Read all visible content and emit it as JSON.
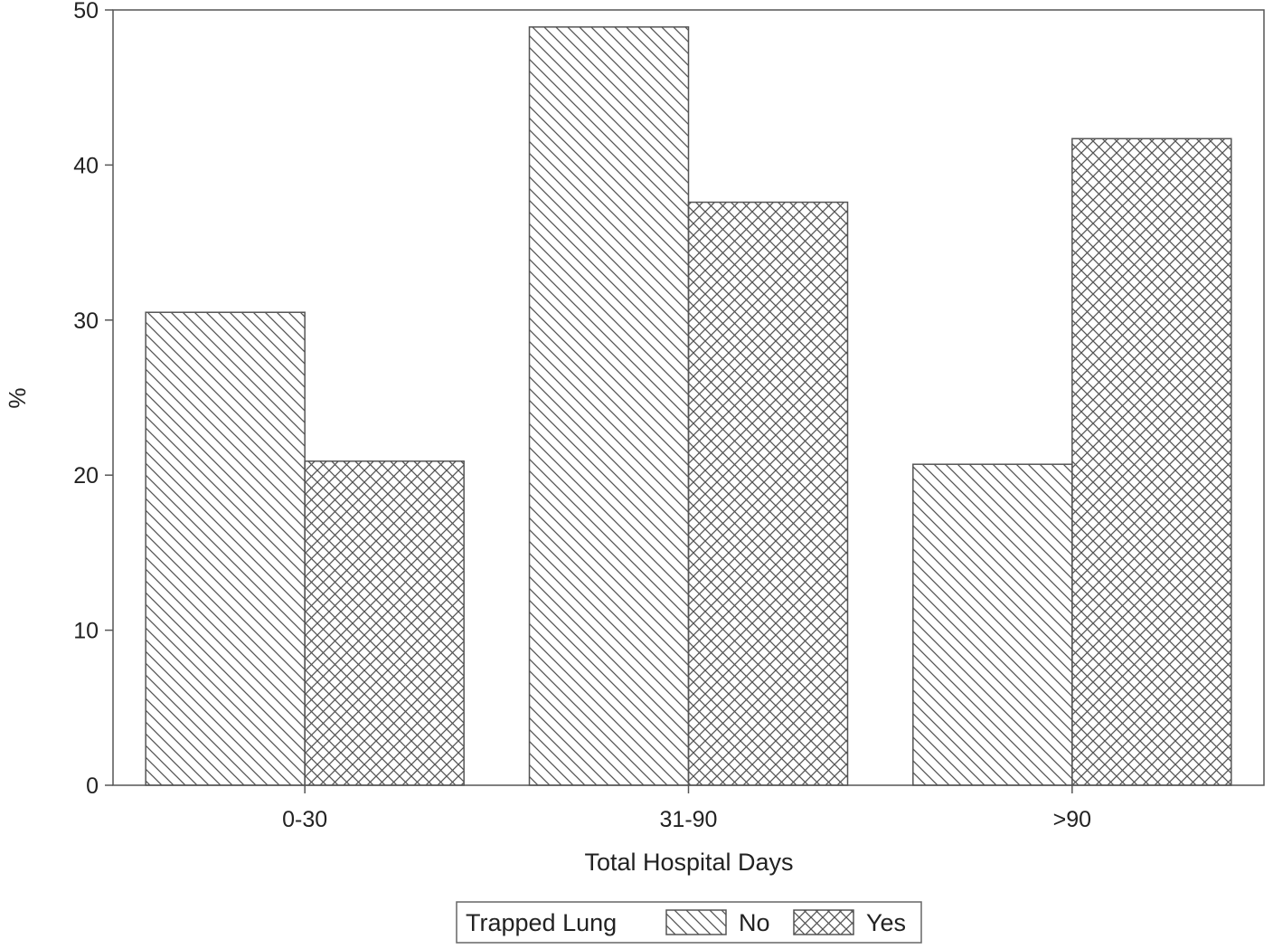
{
  "chart_data": {
    "type": "bar",
    "title": "",
    "xlabel": "Total Hospital Days",
    "ylabel": "%",
    "categories": [
      "0-30",
      "31-90",
      ">90"
    ],
    "series": [
      {
        "name": "No",
        "values": [
          30.5,
          48.9,
          20.7
        ],
        "pattern": "single-hatch"
      },
      {
        "name": "Yes",
        "values": [
          20.9,
          37.6,
          41.7
        ],
        "pattern": "cross-hatch"
      }
    ],
    "ylim": [
      0,
      50
    ],
    "yticks": [
      0,
      10,
      20,
      30,
      40,
      50
    ],
    "grid": false,
    "legend": {
      "title": "Trapped Lung",
      "placement": "bottom-center"
    },
    "colors": {
      "bar_fill": "#ffffff",
      "hatch": "#555555",
      "axis": "#555555",
      "text": "#222222"
    }
  }
}
